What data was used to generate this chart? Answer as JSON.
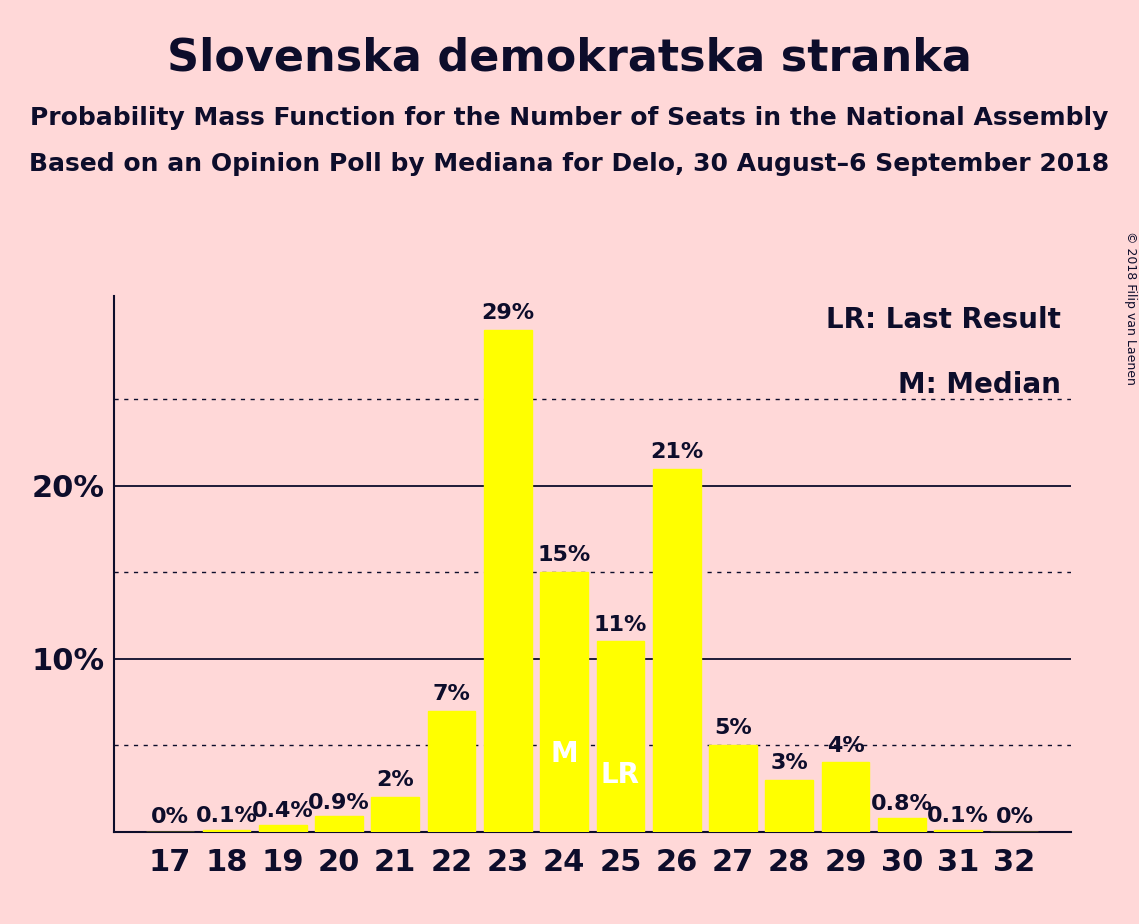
{
  "title": "Slovenska demokratska stranka",
  "subtitle1": "Probability Mass Function for the Number of Seats in the National Assembly",
  "subtitle2": "Based on an Opinion Poll by Mediana for Delo, 30 August–6 September 2018",
  "copyright": "© 2018 Filip van Laenen",
  "seats": [
    17,
    18,
    19,
    20,
    21,
    22,
    23,
    24,
    25,
    26,
    27,
    28,
    29,
    30,
    31,
    32
  ],
  "probabilities": [
    0.0,
    0.1,
    0.4,
    0.9,
    2.0,
    7.0,
    29.0,
    15.0,
    11.0,
    21.0,
    5.0,
    3.0,
    4.0,
    0.8,
    0.1,
    0.0
  ],
  "bar_color": "#ffff00",
  "bg_color": "#ffd8d8",
  "text_color": "#0d0d2b",
  "median_seat": 24,
  "last_result_seat": 25,
  "legend_lr": "LR: Last Result",
  "legend_m": "M: Median",
  "yticks_solid": [
    0,
    10,
    20
  ],
  "yticks_dotted": [
    5,
    15,
    25
  ],
  "ylim": [
    0,
    31
  ],
  "xlim_left": 16.0,
  "xlim_right": 33.0,
  "ylabel_fontsize": 22,
  "xlabel_fontsize": 22,
  "title_fontsize": 32,
  "subtitle_fontsize": 18,
  "bar_label_fontsize": 16,
  "inbar_label_fontsize": 20,
  "legend_fontsize": 20,
  "copyright_fontsize": 9
}
